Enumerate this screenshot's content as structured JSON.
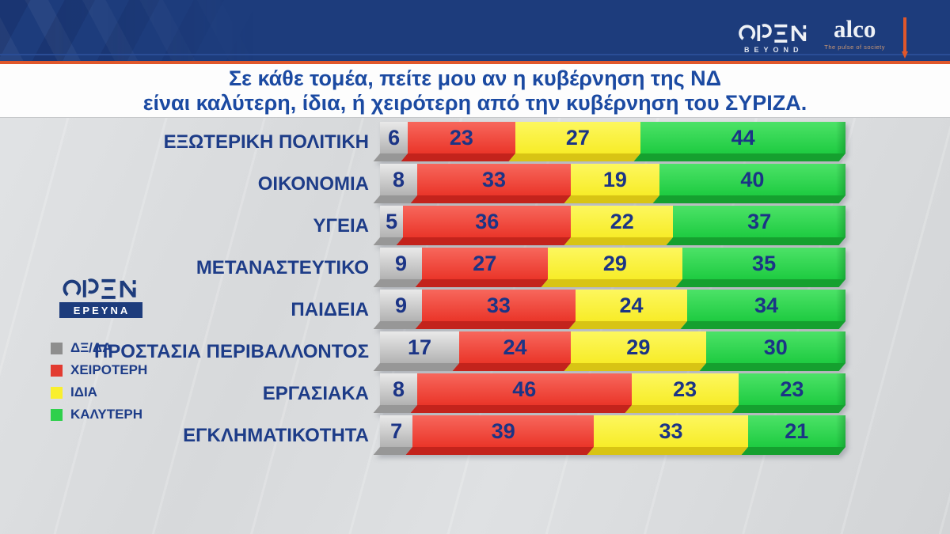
{
  "header": {
    "open_logo_text": "OPEN",
    "open_sub": "BEYOND",
    "alco": "alco",
    "alco_tagline": "The pulse of society"
  },
  "title": {
    "line1": "Σε κάθε τομέα, πείτε μου αν η κυβέρνηση της ΝΔ",
    "line2": "είναι καλύτερη, ίδια, ή χειρότερη από την κυβέρνηση του ΣΥΡΙΖΑ."
  },
  "side": {
    "open_logo_text": "OPEN",
    "badge": "ΕΡΕΥΝΑ"
  },
  "legend": [
    {
      "key": "dk",
      "label": "ΔΞ/ΔΑ",
      "color": "#8e8e8e"
    },
    {
      "key": "worse",
      "label": "ΧΕΙΡΟΤΕΡΗ",
      "color": "#e23b31"
    },
    {
      "key": "same",
      "label": "ΙΔΙΑ",
      "color": "#f9ef2e"
    },
    {
      "key": "better",
      "label": "ΚΑΛΥΤΕΡΗ",
      "color": "#2fd04c"
    }
  ],
  "colors": {
    "header_navy": "#1d3c7c",
    "orange": "#e0572b",
    "title_blue": "#1b4aa2",
    "label_navy": "#1d3c88",
    "value_navy": "#1b3486"
  },
  "chart_data": {
    "type": "bar",
    "stacked": true,
    "orientation": "horizontal",
    "title": "Σε κάθε τομέα, πείτε μου αν η κυβέρνηση της ΝΔ είναι καλύτερη, ίδια, ή χειρότερη από την κυβέρνηση του ΣΥΡΙΖΑ.",
    "xlim": [
      0,
      100
    ],
    "units": "percent",
    "legend_position": "left",
    "categories": [
      "ΕΞΩΤΕΡΙΚΗ ΠΟΛΙΤΙΚΗ",
      "ΟΙΚΟΝΟΜΙΑ",
      "ΥΓΕΙΑ",
      "ΜΕΤΑΝΑΣΤΕΥΤΙΚΟ",
      "ΠΑΙΔΕΙΑ",
      "ΠΡΟΣΤΑΣΙΑ ΠΕΡΙΒΑΛΛΟΝΤΟΣ",
      "ΕΡΓΑΣΙΑΚΑ",
      "ΕΓΚΛΗΜΑΤΙΚΟΤΗΤΑ"
    ],
    "series": [
      {
        "key": "dk",
        "name": "ΔΞ/ΔΑ",
        "values": [
          6,
          8,
          5,
          9,
          9,
          17,
          8,
          7
        ]
      },
      {
        "key": "worse",
        "name": "ΧΕΙΡΟΤΕΡΗ",
        "values": [
          23,
          33,
          36,
          27,
          33,
          24,
          46,
          39
        ]
      },
      {
        "key": "same",
        "name": "ΙΔΙΑ",
        "values": [
          27,
          19,
          22,
          29,
          24,
          29,
          23,
          33
        ]
      },
      {
        "key": "better",
        "name": "ΚΑΛΥΤΕΡΗ",
        "values": [
          44,
          40,
          37,
          35,
          34,
          30,
          23,
          21
        ]
      }
    ],
    "value_color": "#1b3486",
    "segment_colors": {
      "dk": {
        "face_top": "#e9e9e9",
        "face_bottom": "#b2b2b2",
        "bevel": "#979797"
      },
      "worse": {
        "face_top": "#f7675c",
        "face_bottom": "#ea3529",
        "bevel": "#c3231c"
      },
      "same": {
        "face_top": "#fdf75e",
        "face_bottom": "#f7ec28",
        "bevel": "#d8c414"
      },
      "better": {
        "face_top": "#4ce267",
        "face_bottom": "#1ecb41",
        "bevel": "#15a02f"
      }
    }
  }
}
